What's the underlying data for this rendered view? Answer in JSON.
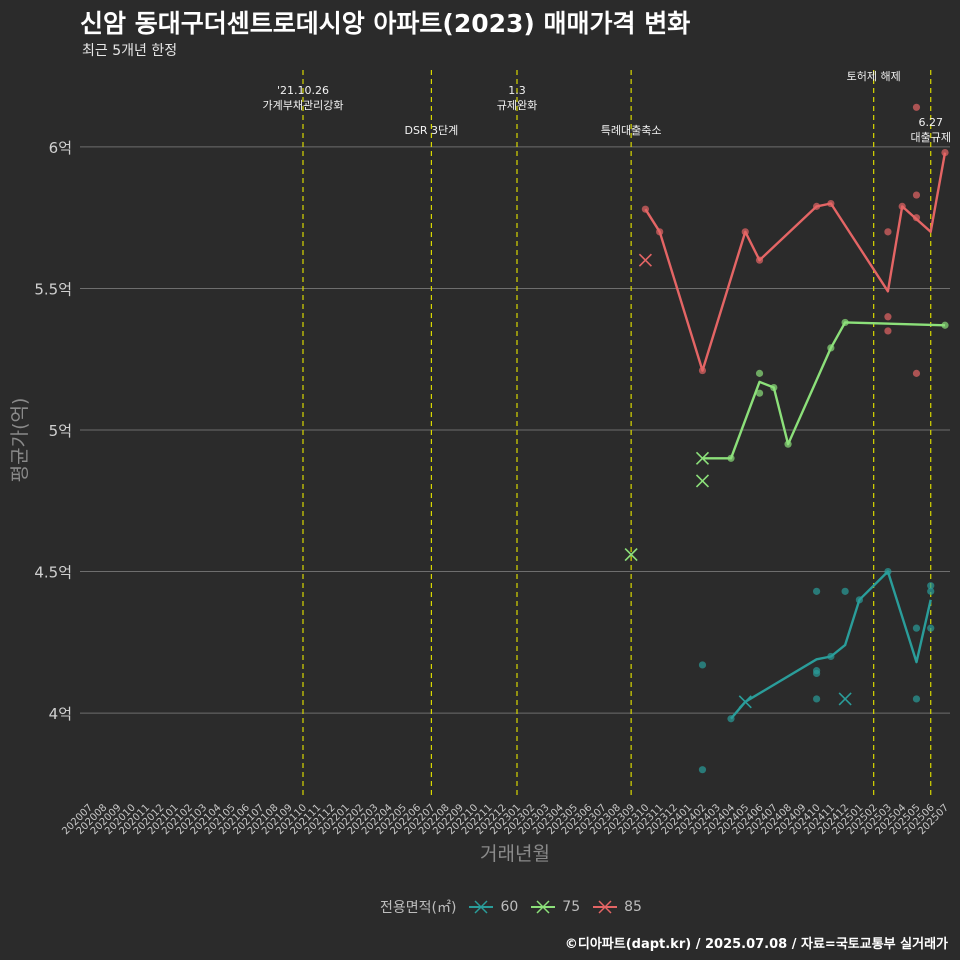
{
  "header": {
    "title": "신암 동대구더센트로데시앙 아파트(2023) 매매가격 변화",
    "subtitle": "최근 5개년 한정"
  },
  "footer": "©디아파트(dapt.kr) / 2025.07.08 / 자료=국토교통부 실거래가",
  "legend": {
    "title": "전용면적(㎡)",
    "items": [
      {
        "label": "60",
        "color": "#2a9d9a"
      },
      {
        "label": "75",
        "color": "#8ce07a"
      },
      {
        "label": "85",
        "color": "#e46565"
      }
    ]
  },
  "chart_data": {
    "type": "line",
    "xlabel": "거래년월",
    "ylabel": "평균가(억)",
    "ylim": [
      3.7,
      6.3
    ],
    "yticks": [
      4.0,
      4.5,
      5.0,
      5.5,
      6.0
    ],
    "ytick_labels": [
      "4억",
      "4.5억",
      "5억",
      "5.5억",
      "6억"
    ],
    "categories": [
      "202007",
      "202008",
      "202009",
      "202010",
      "202011",
      "202012",
      "202101",
      "202102",
      "202103",
      "202104",
      "202105",
      "202106",
      "202107",
      "202108",
      "202109",
      "202110",
      "202111",
      "202112",
      "202201",
      "202202",
      "202203",
      "202204",
      "202205",
      "202206",
      "202207",
      "202208",
      "202209",
      "202210",
      "202211",
      "202212",
      "202301",
      "202302",
      "202303",
      "202304",
      "202305",
      "202306",
      "202307",
      "202308",
      "202309",
      "202310",
      "202311",
      "202312",
      "202401",
      "202402",
      "202403",
      "202404",
      "202405",
      "202406",
      "202407",
      "202408",
      "202409",
      "202410",
      "202411",
      "202412",
      "202501",
      "202502",
      "202503",
      "202504",
      "202505",
      "202506",
      "202507"
    ],
    "events": [
      {
        "month": "202110",
        "labels": [
          "'21.10.26",
          "가계부채관리강화"
        ],
        "row": 0
      },
      {
        "month": "202207",
        "labels": [
          "DSR 3단계"
        ],
        "row": 2
      },
      {
        "month": "202301",
        "labels": [
          "1.3",
          "규제완화"
        ],
        "row": 0
      },
      {
        "month": "202309",
        "labels": [
          "특례대출축소"
        ],
        "row": 2
      },
      {
        "month": "202502",
        "labels": [
          "토허제 해제"
        ],
        "row": 1
      },
      {
        "month": "202506",
        "labels": [
          "6.27",
          "대출규제"
        ],
        "row": 3
      }
    ],
    "series": [
      {
        "name": "60",
        "color": "#2a9d9a",
        "line": [
          {
            "x": "202404",
            "y": 3.98
          },
          {
            "x": "202405",
            "y": 4.04
          },
          {
            "x": "202410",
            "y": 4.19
          },
          {
            "x": "202411",
            "y": 4.2
          },
          {
            "x": "202412",
            "y": 4.24
          },
          {
            "x": "202501",
            "y": 4.4
          },
          {
            "x": "202503",
            "y": 4.5
          },
          {
            "x": "202505",
            "y": 4.18
          },
          {
            "x": "202506",
            "y": 4.4
          }
        ],
        "points": [
          {
            "x": "202402",
            "y": 4.17
          },
          {
            "x": "202402",
            "y": 3.8
          },
          {
            "x": "202404",
            "y": 3.98
          },
          {
            "x": "202410",
            "y": 4.43
          },
          {
            "x": "202410",
            "y": 4.15
          },
          {
            "x": "202410",
            "y": 4.14
          },
          {
            "x": "202410",
            "y": 4.05
          },
          {
            "x": "202411",
            "y": 4.2
          },
          {
            "x": "202412",
            "y": 4.43
          },
          {
            "x": "202501",
            "y": 4.4
          },
          {
            "x": "202503",
            "y": 4.5
          },
          {
            "x": "202505",
            "y": 4.3
          },
          {
            "x": "202505",
            "y": 4.05
          },
          {
            "x": "202506",
            "y": 4.45
          },
          {
            "x": "202506",
            "y": 4.43
          },
          {
            "x": "202506",
            "y": 4.3
          }
        ],
        "crosses": [
          {
            "x": "202405",
            "y": 4.04
          },
          {
            "x": "202412",
            "y": 4.05
          }
        ]
      },
      {
        "name": "75",
        "color": "#8ce07a",
        "line": [
          {
            "x": "202402",
            "y": 4.9
          },
          {
            "x": "202404",
            "y": 4.9
          },
          {
            "x": "202406",
            "y": 5.17
          },
          {
            "x": "202407",
            "y": 5.15
          },
          {
            "x": "202408",
            "y": 4.95
          },
          {
            "x": "202411",
            "y": 5.29
          },
          {
            "x": "202412",
            "y": 5.38
          },
          {
            "x": "202507",
            "y": 5.37
          }
        ],
        "points": [
          {
            "x": "202404",
            "y": 4.9
          },
          {
            "x": "202406",
            "y": 5.2
          },
          {
            "x": "202406",
            "y": 5.13
          },
          {
            "x": "202407",
            "y": 5.15
          },
          {
            "x": "202408",
            "y": 4.95
          },
          {
            "x": "202411",
            "y": 5.29
          },
          {
            "x": "202412",
            "y": 5.38
          },
          {
            "x": "202507",
            "y": 5.37
          }
        ],
        "crosses": [
          {
            "x": "202309",
            "y": 4.56
          },
          {
            "x": "202402",
            "y": 4.9
          },
          {
            "x": "202402",
            "y": 4.82
          }
        ]
      },
      {
        "name": "85",
        "color": "#e46565",
        "line": [
          {
            "x": "202310",
            "y": 5.78
          },
          {
            "x": "202311",
            "y": 5.7
          },
          {
            "x": "202402",
            "y": 5.21
          },
          {
            "x": "202405",
            "y": 5.7
          },
          {
            "x": "202406",
            "y": 5.6
          },
          {
            "x": "202410",
            "y": 5.79
          },
          {
            "x": "202411",
            "y": 5.8
          },
          {
            "x": "202503",
            "y": 5.49
          },
          {
            "x": "202504",
            "y": 5.79
          },
          {
            "x": "202506",
            "y": 5.7
          },
          {
            "x": "202507",
            "y": 5.98
          }
        ],
        "points": [
          {
            "x": "202310",
            "y": 5.78
          },
          {
            "x": "202311",
            "y": 5.7
          },
          {
            "x": "202402",
            "y": 5.21
          },
          {
            "x": "202405",
            "y": 5.7
          },
          {
            "x": "202406",
            "y": 5.6
          },
          {
            "x": "202410",
            "y": 5.79
          },
          {
            "x": "202411",
            "y": 5.8
          },
          {
            "x": "202503",
            "y": 5.7
          },
          {
            "x": "202503",
            "y": 5.4
          },
          {
            "x": "202503",
            "y": 5.35
          },
          {
            "x": "202504",
            "y": 5.79
          },
          {
            "x": "202505",
            "y": 6.14
          },
          {
            "x": "202505",
            "y": 5.83
          },
          {
            "x": "202505",
            "y": 5.75
          },
          {
            "x": "202505",
            "y": 5.2
          },
          {
            "x": "202507",
            "y": 5.98
          }
        ],
        "crosses": [
          {
            "x": "202310",
            "y": 5.6
          }
        ]
      }
    ]
  }
}
